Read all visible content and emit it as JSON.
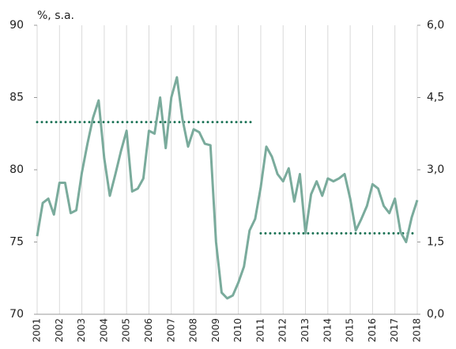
{
  "chart_data": {
    "type": "line",
    "unit_label": "%, s.a.",
    "x": [
      2001,
      2001.25,
      2001.5,
      2001.75,
      2002,
      2002.25,
      2002.5,
      2002.75,
      2003,
      2003.25,
      2003.5,
      2003.75,
      2004,
      2004.25,
      2004.5,
      2004.75,
      2005,
      2005.25,
      2005.5,
      2005.75,
      2006,
      2006.25,
      2006.5,
      2006.75,
      2007,
      2007.25,
      2007.5,
      2007.75,
      2008,
      2008.25,
      2008.5,
      2008.75,
      2009,
      2009.25,
      2009.5,
      2009.75,
      2010,
      2010.25,
      2010.5,
      2010.75,
      2011,
      2011.25,
      2011.5,
      2011.75,
      2012,
      2012.25,
      2012.5,
      2012.75,
      2013,
      2013.25,
      2013.5,
      2013.75,
      2014,
      2014.25,
      2014.5,
      2014.75,
      2015,
      2015.25,
      2015.5,
      2015.75,
      2016,
      2016.25,
      2016.5,
      2016.75,
      2017,
      2017.25,
      2017.5,
      2017.75,
      2018
    ],
    "series": [
      {
        "color": "#7aab9c",
        "values": [
          75.4,
          77.7,
          78.0,
          76.9,
          79.1,
          79.1,
          77.0,
          77.2,
          79.8,
          81.8,
          83.6,
          84.8,
          80.8,
          78.2,
          79.7,
          81.3,
          82.7,
          78.5,
          78.7,
          79.4,
          82.7,
          82.5,
          85.0,
          81.5,
          85.0,
          86.4,
          83.5,
          81.6,
          82.8,
          82.6,
          81.8,
          81.7,
          75.0,
          71.5,
          71.1,
          71.3,
          72.2,
          73.3,
          75.8,
          76.6,
          78.8,
          81.6,
          80.9,
          79.7,
          79.2,
          80.1,
          77.8,
          79.7,
          75.6,
          78.3,
          79.2,
          78.2,
          79.4,
          79.2,
          79.4,
          79.7,
          78.0,
          75.8,
          76.6,
          77.5,
          79.0,
          78.7,
          77.5,
          77.0,
          78.0,
          75.7,
          75.0,
          76.7,
          77.9
        ]
      }
    ],
    "reference_lines": [
      {
        "value": 83.3,
        "x": [
          2001,
          2010.75
        ],
        "color": "#1b7356"
      },
      {
        "value": 75.6,
        "x": [
          2011,
          2017.9
        ],
        "color": "#1b7356"
      }
    ],
    "xlim": [
      2001,
      2018
    ],
    "xticks": [
      2001,
      2002,
      2003,
      2004,
      2005,
      2006,
      2007,
      2008,
      2009,
      2010,
      2011,
      2012,
      2013,
      2014,
      2015,
      2016,
      2017,
      2018
    ],
    "ylim": [
      70,
      90
    ],
    "yticks": [
      70,
      75,
      80,
      85,
      90
    ],
    "y2lim": [
      0,
      6
    ],
    "y2ticks": [
      {
        "value": 0,
        "label": "0,0"
      },
      {
        "value": 1.5,
        "label": "1,5"
      },
      {
        "value": 3,
        "label": "3,0"
      },
      {
        "value": 4.5,
        "label": "4,5"
      },
      {
        "value": 6,
        "label": "6,0"
      }
    ],
    "grid": true
  }
}
